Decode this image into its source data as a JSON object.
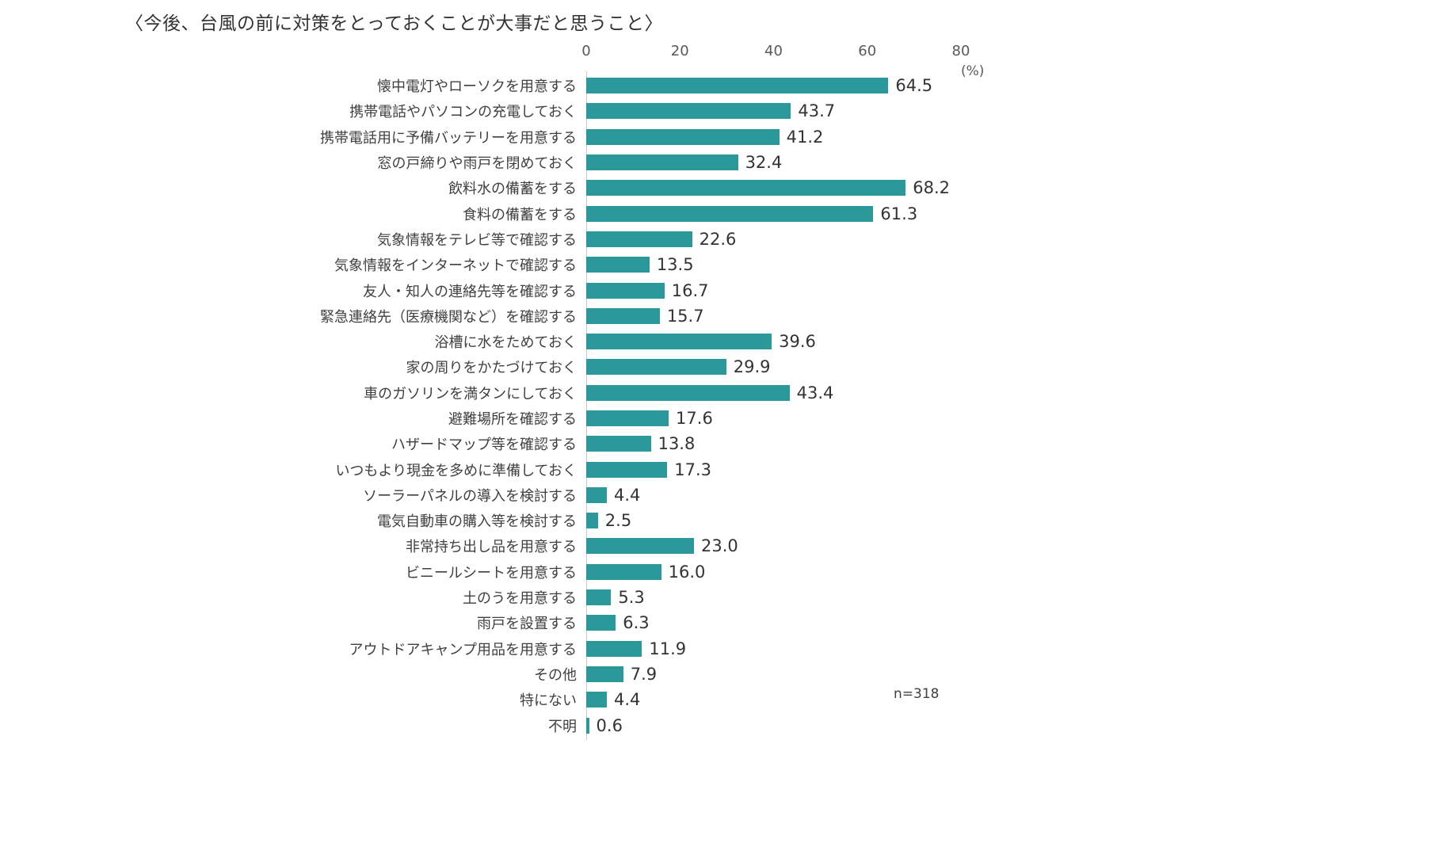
{
  "title": "〈今後、台風の前に対策をとっておくことが大事だと思うこと〉",
  "note": "n=318",
  "axis": {
    "ticks": [
      0,
      20,
      40,
      60,
      80
    ],
    "max": 80,
    "unit_label": "(%)"
  },
  "colors": {
    "bar": "#2b9999",
    "text": "#404040"
  },
  "chart_data": {
    "type": "bar",
    "orientation": "horizontal",
    "title": "〈今後、台風の前に対策をとっておくことが大事だと思うこと〉",
    "xlabel": "(%)",
    "xlim": [
      0,
      80
    ],
    "grid": false,
    "legend": false,
    "sample_size": "n=318",
    "categories": [
      "懐中電灯やローソクを用意する",
      "携帯電話やパソコンの充電しておく",
      "携帯電話用に予備バッテリーを用意する",
      "窓の戸締りや雨戸を閉めておく",
      "飲料水の備蓄をする",
      "食料の備蓄をする",
      "気象情報をテレビ等で確認する",
      "気象情報をインターネットで確認する",
      "友人・知人の連絡先等を確認する",
      "緊急連絡先（医療機関など）を確認する",
      "浴槽に水をためておく",
      "家の周りをかたづけておく",
      "車のガソリンを満タンにしておく",
      "避難場所を確認する",
      "ハザードマップ等を確認する",
      "いつもより現金を多めに準備しておく",
      "ソーラーパネルの導入を検討する",
      "電気自動車の購入等を検討する",
      "非常持ち出し品を用意する",
      "ビニールシートを用意する",
      "土のうを用意する",
      "雨戸を設置する",
      "アウトドアキャンプ用品を用意する",
      "その他",
      "特にない",
      "不明"
    ],
    "values": [
      64.5,
      43.7,
      41.2,
      32.4,
      68.2,
      61.3,
      22.6,
      13.5,
      16.7,
      15.7,
      39.6,
      29.9,
      43.4,
      17.6,
      13.8,
      17.3,
      4.4,
      2.5,
      23.0,
      16.0,
      5.3,
      6.3,
      11.9,
      7.9,
      4.4,
      0.6
    ]
  }
}
